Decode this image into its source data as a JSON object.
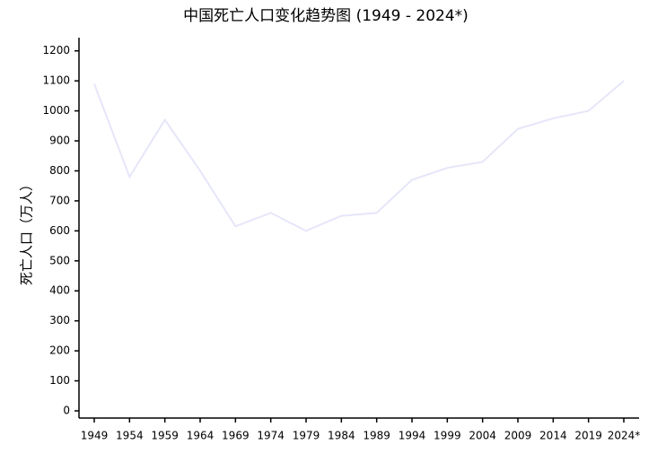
{
  "chart_data": {
    "type": "line",
    "title": "中国死亡人口变化趋势图 (1949 - 2024*)",
    "y_label": "死亡人口（万人）",
    "categories": [
      "1949",
      "1954",
      "1959",
      "1964",
      "1969",
      "1974",
      "1979",
      "1984",
      "1989",
      "1994",
      "1999",
      "2004",
      "2009",
      "2014",
      "2019",
      "2024*"
    ],
    "series": [
      {
        "name": "死亡人口",
        "color": "#e6e6fa",
        "values": [
          1090,
          780,
          970,
          800,
          615,
          660,
          600,
          650,
          660,
          770,
          810,
          830,
          940,
          975,
          1000,
          1100
        ]
      }
    ],
    "ylim": [
      -24,
      1244
    ],
    "yticks": [
      0,
      100,
      200,
      300,
      400,
      500,
      600,
      700,
      800,
      900,
      1000,
      1100,
      1200
    ],
    "grid": false
  }
}
